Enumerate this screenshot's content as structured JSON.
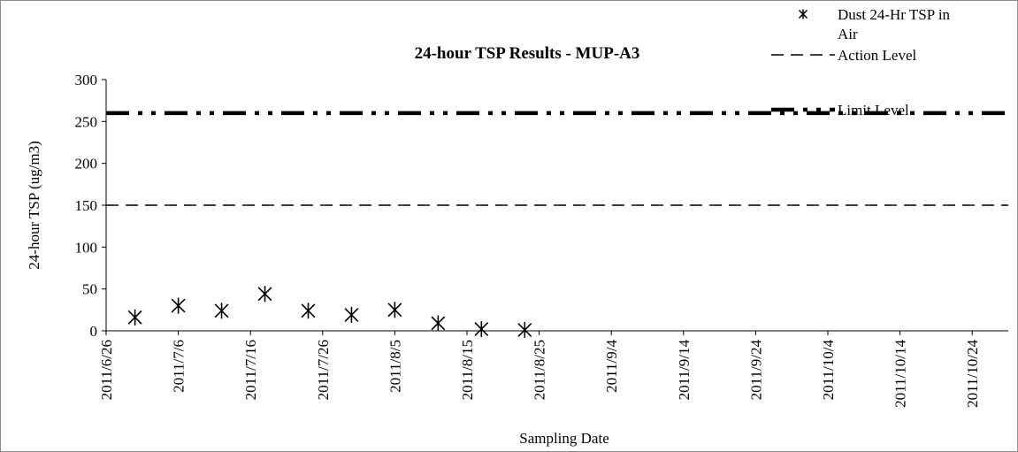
{
  "chart_data": {
    "type": "scatter",
    "title": "24-hour TSP Results - MUP-A3",
    "xlabel": "Sampling Date",
    "ylabel": "24-hour TSP (ug/m3)",
    "ylim": [
      0,
      300
    ],
    "yticks": [
      0,
      50,
      100,
      150,
      200,
      250,
      300
    ],
    "xlim": [
      "2011/6/26",
      "2011/10/29"
    ],
    "xticks": [
      "2011/6/26",
      "2011/7/6",
      "2011/7/16",
      "2011/7/26",
      "2011/8/5",
      "2011/8/15",
      "2011/8/25",
      "2011/9/4",
      "2011/9/14",
      "2011/9/24",
      "2011/10/4",
      "2011/10/14",
      "2011/10/24"
    ],
    "grid": false,
    "legend_position": "top-right",
    "series": [
      {
        "name": "Dust 24-Hr TSP in Air",
        "kind": "points",
        "marker": "asterisk",
        "x": [
          "2011/6/30",
          "2011/7/6",
          "2011/7/12",
          "2011/7/18",
          "2011/7/24",
          "2011/7/30",
          "2011/8/5",
          "2011/8/11",
          "2011/8/17",
          "2011/8/23"
        ],
        "y": [
          16,
          30,
          24,
          44,
          24,
          19,
          25,
          9,
          2,
          1
        ]
      },
      {
        "name": "Action Level",
        "kind": "hline",
        "value": 150,
        "dash": "dash"
      },
      {
        "name": "Limit Level",
        "kind": "hline",
        "value": 260,
        "dash": "dash-dot-dot"
      }
    ]
  }
}
